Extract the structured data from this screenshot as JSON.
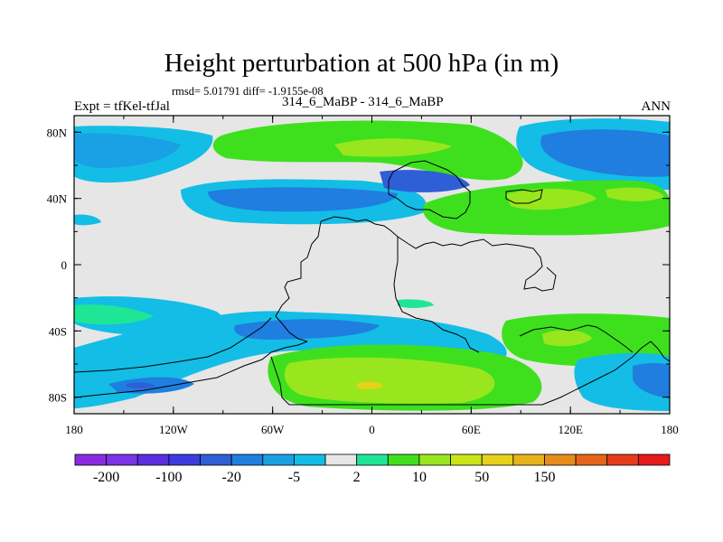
{
  "chart_data": {
    "type": "heatmap",
    "title": "Height perturbation at 500 hPa (in m)",
    "stats_text": "rmsd= 5.01791 diff= -1.9155e-08",
    "left_label": "Expt = tfKel-tfJal",
    "center_label": "314_6_MaBP - 314_6_MaBP",
    "right_label": "ANN",
    "x_ticks": [
      "180",
      "120W",
      "60W",
      "0",
      "60E",
      "120E",
      "180"
    ],
    "y_ticks": [
      "80N",
      "40N",
      "0",
      "40S",
      "80S"
    ],
    "xlim": [
      -180,
      180
    ],
    "ylim": [
      -90,
      90
    ],
    "colorbar": {
      "colors": [
        "#8a2be2",
        "#7a33e6",
        "#5a2fe0",
        "#3c3cde",
        "#2f5fd6",
        "#1f7ee0",
        "#1aa0e4",
        "#13bde6",
        "#e6e6e6",
        "#1ee696",
        "#3ee01e",
        "#9ae61e",
        "#c8e617",
        "#e6d21a",
        "#e6b41a",
        "#e68c1a",
        "#e6641a",
        "#e63c1a",
        "#e61a1a"
      ],
      "labels": [
        "-200",
        "-100",
        "-20",
        "-5",
        "2",
        "10",
        "50",
        "150"
      ]
    }
  }
}
